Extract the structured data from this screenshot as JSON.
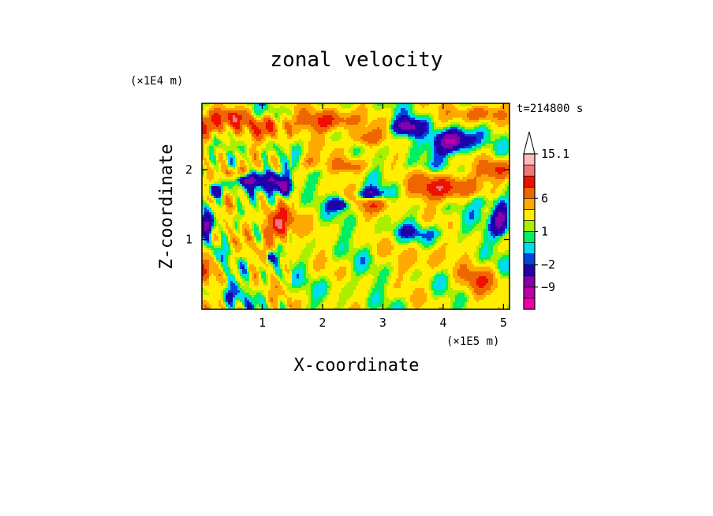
{
  "chart_data": {
    "type": "heatmap",
    "title": "zonal velocity",
    "xlabel": "X-coordinate",
    "ylabel": "Z-coordinate",
    "x_unit_label": "(×1E5 m)",
    "y_unit_label": "(×1E4 m)",
    "time_label": "t=214800 s",
    "xlim": [
      0,
      5.1
    ],
    "ylim": [
      0,
      2.95
    ],
    "x_ticks": [
      1,
      2,
      3,
      4,
      5
    ],
    "x_tick_labels": [
      "1",
      "2",
      "3",
      "4",
      "5"
    ],
    "y_ticks": [
      1,
      2
    ],
    "y_tick_labels": [
      "1",
      "2"
    ],
    "colorbar": {
      "levels": [
        -15,
        -12,
        -9,
        -6,
        -2,
        -1,
        0,
        1,
        2,
        4,
        6,
        9,
        12,
        15.1
      ],
      "shown_labels": [
        "15.1",
        "6",
        "1",
        "−2",
        "−9"
      ],
      "shown_label_values": [
        15.1,
        6,
        1,
        -2,
        -9
      ],
      "colors": [
        "#ee00aa",
        "#bb00aa",
        "#8800aa",
        "#2200aa",
        "#0044dd",
        "#00ddee",
        "#00ee66",
        "#aaee00",
        "#ffee00",
        "#ffaa00",
        "#ee6600",
        "#ee1100",
        "#ee7777",
        "#ffbbbb"
      ],
      "extend": "max"
    },
    "blobs": [
      {
        "x": 0.1,
        "z": 2.6,
        "sx": 0.25,
        "sz": 0.18,
        "v": 8
      },
      {
        "x": 0.5,
        "z": 2.75,
        "sx": 0.35,
        "sz": 0.12,
        "v": 6
      },
      {
        "x": 1.1,
        "z": 2.6,
        "sx": 0.35,
        "sz": 0.15,
        "v": 7
      },
      {
        "x": 2.1,
        "z": 2.7,
        "sx": 0.45,
        "sz": 0.15,
        "v": 8
      },
      {
        "x": 2.7,
        "z": 2.45,
        "sx": 0.25,
        "sz": 0.12,
        "v": 7
      },
      {
        "x": 4.6,
        "z": 2.8,
        "sx": 0.4,
        "sz": 0.12,
        "v": 6
      },
      {
        "x": 4.0,
        "z": 1.75,
        "sx": 0.5,
        "sz": 0.18,
        "v": 9
      },
      {
        "x": 4.9,
        "z": 2.0,
        "sx": 0.25,
        "sz": 0.15,
        "v": 8
      },
      {
        "x": 1.25,
        "z": 1.2,
        "sx": 0.25,
        "sz": 0.25,
        "v": 10
      },
      {
        "x": 0.5,
        "z": 1.95,
        "sx": 0.2,
        "sz": 0.1,
        "v": 6
      },
      {
        "x": 0.1,
        "z": 0.6,
        "sx": 0.15,
        "sz": 0.2,
        "v": 6
      },
      {
        "x": 2.45,
        "z": 2.05,
        "sx": 0.3,
        "sz": 0.1,
        "v": 5
      },
      {
        "x": 2.9,
        "z": 1.5,
        "sx": 0.3,
        "sz": 0.12,
        "v": 5
      },
      {
        "x": 1.8,
        "z": 2.1,
        "sx": 0.2,
        "sz": 0.12,
        "v": 5
      },
      {
        "x": 3.75,
        "z": 0.75,
        "sx": 0.4,
        "sz": 0.2,
        "v": 3
      },
      {
        "x": 4.6,
        "z": 0.4,
        "sx": 0.35,
        "sz": 0.2,
        "v": 5
      },
      {
        "x": 1.15,
        "z": 1.85,
        "sx": 0.2,
        "sz": 0.15,
        "v": -11
      },
      {
        "x": 0.75,
        "z": 1.85,
        "sx": 0.15,
        "sz": 0.08,
        "v": -9
      },
      {
        "x": 1.4,
        "z": 1.75,
        "sx": 0.12,
        "sz": 0.12,
        "v": -9
      },
      {
        "x": 3.4,
        "z": 2.6,
        "sx": 0.25,
        "sz": 0.12,
        "v": -10
      },
      {
        "x": 4.15,
        "z": 2.4,
        "sx": 0.3,
        "sz": 0.16,
        "v": -13
      },
      {
        "x": 2.8,
        "z": 1.65,
        "sx": 0.2,
        "sz": 0.08,
        "v": -9
      },
      {
        "x": 2.3,
        "z": 1.5,
        "sx": 0.15,
        "sz": 0.08,
        "v": -8
      },
      {
        "x": 4.95,
        "z": 1.3,
        "sx": 0.15,
        "sz": 0.25,
        "v": -10
      },
      {
        "x": 0.1,
        "z": 1.2,
        "sx": 0.1,
        "sz": 0.15,
        "v": -8
      },
      {
        "x": 0.2,
        "z": 1.7,
        "sx": 0.15,
        "sz": 0.1,
        "v": -8
      },
      {
        "x": 1.15,
        "z": 0.75,
        "sx": 0.08,
        "sz": 0.08,
        "v": -7
      },
      {
        "x": 3.7,
        "z": 1.1,
        "sx": 0.6,
        "sz": 0.12,
        "v": -3
      },
      {
        "x": 2.3,
        "z": 0.35,
        "sx": 0.25,
        "sz": 0.15,
        "v": -1.5
      },
      {
        "x": 0.5,
        "z": 0.2,
        "sx": 0.3,
        "sz": 0.15,
        "v": -2
      },
      {
        "x": 3.5,
        "z": 2.05,
        "sx": 0.4,
        "sz": 0.1,
        "v": -1.5
      },
      {
        "x": 4.7,
        "z": 1.55,
        "sx": 0.3,
        "sz": 0.1,
        "v": -3
      }
    ]
  }
}
